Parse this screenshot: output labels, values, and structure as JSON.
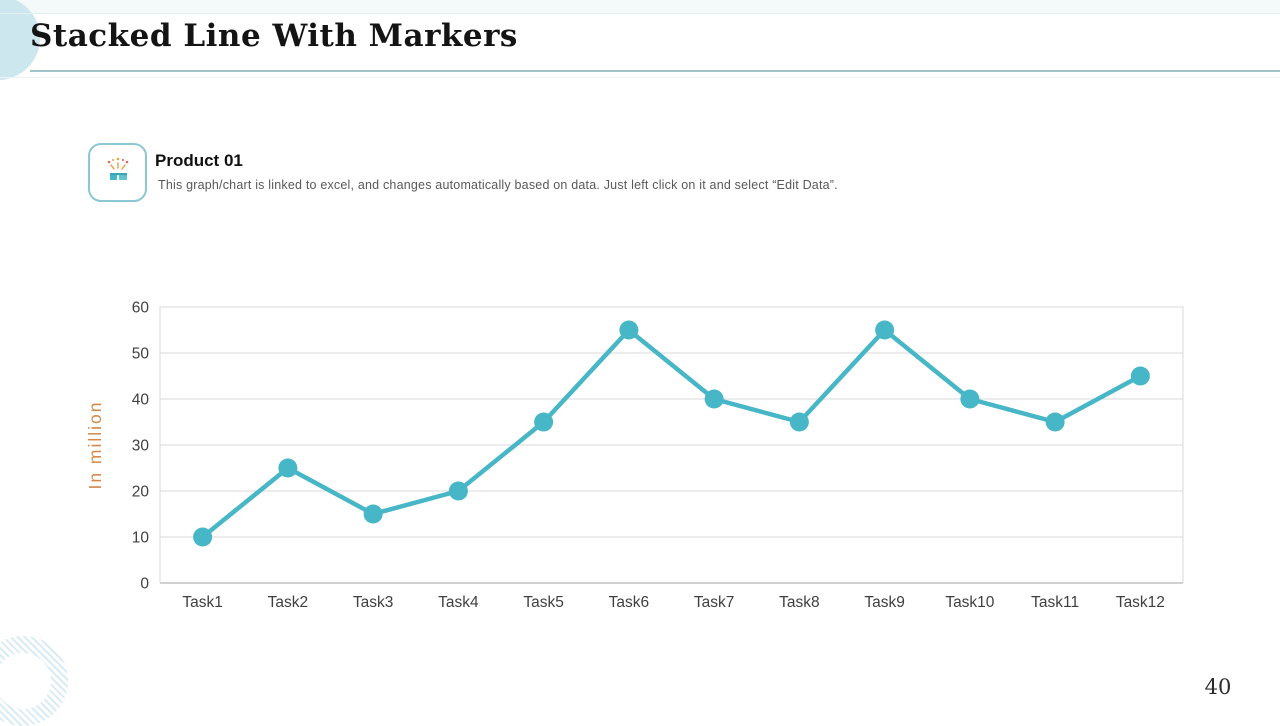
{
  "slide": {
    "title": "Stacked Line With Markers",
    "page_number": "40"
  },
  "product": {
    "title": "Product 01",
    "description": "This graph/chart is linked to excel, and changes automatically based on data. Just left click on it and select “Edit Data”.",
    "icon": "confetti-icon"
  },
  "chart_data": {
    "type": "line",
    "title": "Product 01",
    "categories": [
      "Task1",
      "Task2",
      "Task3",
      "Task4",
      "Task5",
      "Task6",
      "Task7",
      "Task8",
      "Task9",
      "Task10",
      "Task11",
      "Task12"
    ],
    "series": [
      {
        "name": "Product 01",
        "values": [
          10,
          25,
          15,
          20,
          35,
          55,
          40,
          35,
          55,
          40,
          35,
          45
        ]
      }
    ],
    "xlabel": "",
    "ylabel": "In million",
    "ylim": [
      0,
      60
    ],
    "ytick_step": 10,
    "grid": true,
    "legend": "none",
    "marker": "circle",
    "line_color": "#47b6c6",
    "ylabel_color": "#d4884a",
    "axis_text_color": "#3f3f3f",
    "grid_color": "#d9d9d9",
    "axis_line_color": "#c0c0c0"
  },
  "colors": {
    "accent_teal": "#47b6c6",
    "title_text": "#141414",
    "body_text": "#595959",
    "decor_blue": "#cde7ee",
    "rule": "#9fc3c6"
  }
}
